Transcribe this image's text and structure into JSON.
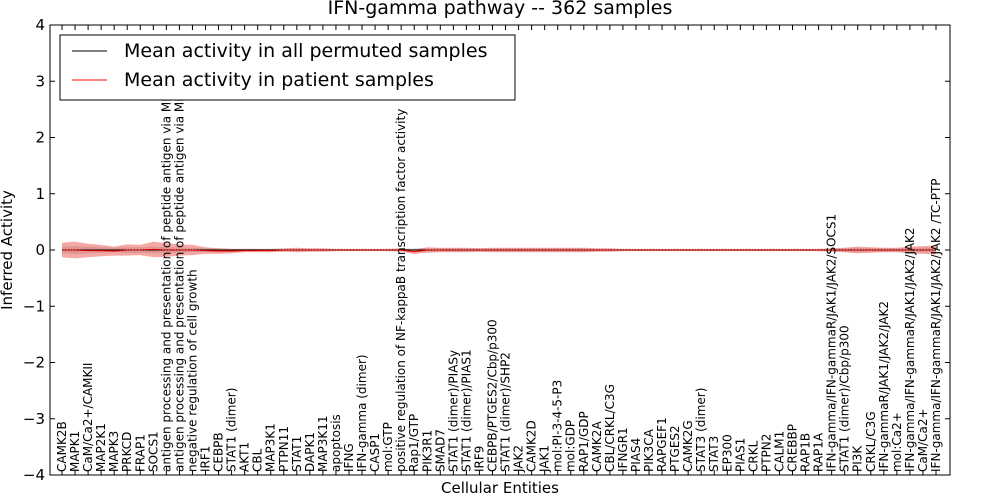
{
  "chart_data": {
    "type": "line",
    "title": "IFN-gamma pathway -- 362 samples",
    "xlabel": "Cellular Entities",
    "ylabel": "Inferred Activity",
    "ylim": [
      -4,
      4
    ],
    "yticks": [
      "4",
      "3",
      "2",
      "1",
      "0",
      "−1",
      "−2",
      "−3",
      "−4"
    ],
    "legend_position": "top-left",
    "series": [
      {
        "name": "Mean activity in all permuted samples",
        "color": "#000000"
      },
      {
        "name": "Mean activity in patient samples",
        "color": "#ff0000"
      }
    ],
    "categories": [
      "CAMK2B",
      "MAPK1",
      "CaM/Ca2+/CAMKII",
      "MAP2K1",
      "MAPK3",
      "PRKCD",
      "FRAP1",
      "SOCS1",
      "antigen processing and presentation of peptide antigen via MHC class I",
      "antigen processing and presentation of peptide antigen via MHC class II",
      "negative regulation of cell growth",
      "IRF1",
      "CEBPB",
      "STAT1 (dimer)",
      "AKT1",
      "CBL",
      "MAP3K1",
      "PTPN11",
      "STAT1",
      "DAPK1",
      "MAP3K11",
      "apoptosis",
      "IFNG",
      "IFN-gamma (dimer)",
      "CASP1",
      "mol:GTP",
      "positive regulation of NF-kappaB transcription factor activity",
      "Rap1/GTP",
      "PIK3R1",
      "SMAD7",
      "STAT1 (dimer)/PIASy",
      "STAT1 (dimer)/PIAS1",
      "IRF9",
      "CEBPB/PTGES2/Cbp/p300",
      "STAT1 (dimer)/SHP2",
      "JAK2",
      "CAMK2D",
      "JAK1",
      "mol:PI-3-4-5-P3",
      "mol:GDP",
      "RAP1/GDP",
      "CAMK2A",
      "CBL/CRKL/C3G",
      "IFNGR1",
      "PIAS4",
      "PIK3CA",
      "RAPGEF1",
      "PTGES2",
      "CAMK2G",
      "STAT3 (dimer)",
      "STAT3",
      "EP300",
      "PIAS1",
      "CRKL",
      "PTPN2",
      "CALM1",
      "CREBBP",
      "RAP1B",
      "RAP1A",
      "IFN-gamma/IFN-gammaR/JAK1/JAK2/SOCS1",
      "STAT1 (dimer)/Cbp/p300",
      "PI3K",
      "CRKL/C3G",
      "IFN-gammaR/JAK1/JAK2/JAK2",
      "mol:Ca2+",
      "IFN-gamma/IFN-gammaR/JAK1/JAK2/JAK2",
      "CaM/Ca2+",
      "IFN-gamma/IFN-gammaR/JAK1/JAK2/JAK2 /TC-PTP"
    ],
    "patient_mean": [
      0.0,
      0.0,
      -0.01,
      -0.01,
      -0.02,
      0.0,
      0.0,
      0.01,
      0.0,
      0.0,
      0.0,
      -0.01,
      -0.02,
      -0.02,
      -0.01,
      -0.01,
      -0.01,
      0.0,
      0.0,
      0.0,
      0.0,
      0.0,
      0.0,
      0.0,
      0.0,
      0.0,
      0.0,
      -0.03,
      0.0,
      0.0,
      0.0,
      0.0,
      0.0,
      0.0,
      0.0,
      0.0,
      0.0,
      0.0,
      0.0,
      0.0,
      0.0,
      0.0,
      0.0,
      0.0,
      0.0,
      0.0,
      0.0,
      0.0,
      0.0,
      0.0,
      0.0,
      0.0,
      0.0,
      0.0,
      0.0,
      0.0,
      0.0,
      0.0,
      0.0,
      0.0,
      0.0,
      0.0,
      0.0,
      0.0,
      0.0,
      0.0,
      0.0,
      0.0
    ],
    "patient_band": [
      0.13,
      0.15,
      0.12,
      0.1,
      0.08,
      0.1,
      0.09,
      0.14,
      0.12,
      0.1,
      0.09,
      0.06,
      0.05,
      0.04,
      0.03,
      0.03,
      0.03,
      0.03,
      0.04,
      0.03,
      0.03,
      0.02,
      0.02,
      0.02,
      0.02,
      0.02,
      0.03,
      0.04,
      0.05,
      0.04,
      0.04,
      0.04,
      0.03,
      0.04,
      0.04,
      0.04,
      0.04,
      0.04,
      0.04,
      0.04,
      0.04,
      0.03,
      0.03,
      0.02,
      0.02,
      0.02,
      0.02,
      0.02,
      0.02,
      0.02,
      0.02,
      0.02,
      0.02,
      0.02,
      0.02,
      0.02,
      0.02,
      0.02,
      0.02,
      0.03,
      0.04,
      0.06,
      0.05,
      0.04,
      0.04,
      0.06,
      0.07,
      0.08
    ],
    "permuted_mean": [
      0.0,
      0.0,
      0.0,
      0.0,
      0.0,
      0.0,
      0.0,
      0.0,
      0.0,
      0.0,
      0.0,
      0.0,
      0.0,
      0.0,
      0.0,
      0.0,
      0.0,
      0.0,
      0.0,
      0.0,
      0.0,
      0.0,
      0.0,
      0.0,
      0.0,
      0.0,
      0.0,
      0.0,
      0.0,
      0.0,
      0.0,
      0.0,
      0.0,
      0.0,
      0.0,
      0.0,
      0.0,
      0.0,
      0.0,
      0.0,
      0.0,
      0.0,
      0.0,
      0.0,
      0.0,
      0.0,
      0.0,
      0.0,
      0.0,
      0.0,
      0.0,
      0.0,
      0.0,
      0.0,
      0.0,
      0.0,
      0.0,
      0.0,
      0.0,
      0.0,
      0.0,
      0.0,
      0.0,
      0.0,
      0.0,
      0.0,
      0.0,
      0.0
    ],
    "permuted_band": [
      0.06,
      0.07,
      0.06,
      0.05,
      0.04,
      0.05,
      0.05,
      0.06,
      0.05,
      0.05,
      0.04,
      0.03,
      0.03,
      0.02,
      0.02,
      0.02,
      0.02,
      0.02,
      0.02,
      0.02,
      0.02,
      0.02,
      0.02,
      0.02,
      0.02,
      0.02,
      0.02,
      0.03,
      0.03,
      0.03,
      0.03,
      0.03,
      0.03,
      0.03,
      0.03,
      0.03,
      0.03,
      0.03,
      0.03,
      0.03,
      0.03,
      0.02,
      0.02,
      0.02,
      0.02,
      0.02,
      0.02,
      0.02,
      0.02,
      0.02,
      0.02,
      0.02,
      0.02,
      0.02,
      0.02,
      0.02,
      0.02,
      0.02,
      0.02,
      0.02,
      0.03,
      0.04,
      0.03,
      0.03,
      0.03,
      0.04,
      0.04,
      0.04
    ]
  }
}
